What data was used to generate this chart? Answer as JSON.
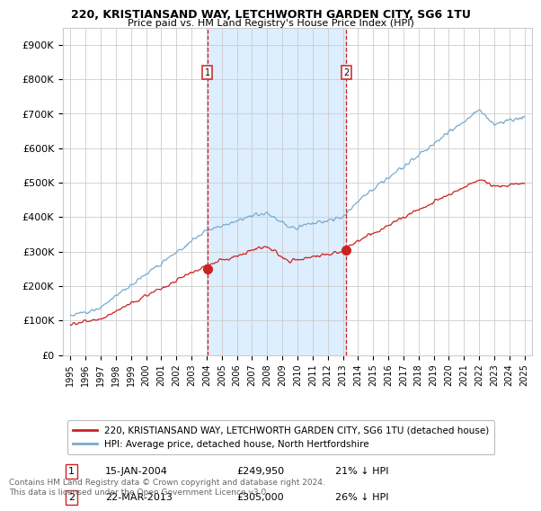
{
  "title1": "220, KRISTIANSAND WAY, LETCHWORTH GARDEN CITY, SG6 1TU",
  "title2": "Price paid vs. HM Land Registry's House Price Index (HPI)",
  "ylabel_ticks": [
    "£0",
    "£100K",
    "£200K",
    "£300K",
    "£400K",
    "£500K",
    "£600K",
    "£700K",
    "£800K",
    "£900K"
  ],
  "ytick_values": [
    0,
    100000,
    200000,
    300000,
    400000,
    500000,
    600000,
    700000,
    800000,
    900000
  ],
  "ylim": [
    0,
    950000
  ],
  "xlim_start": 1994.5,
  "xlim_end": 2025.5,
  "ann1_x": 2004.04,
  "ann1_price": 249950,
  "ann1_date": "15-JAN-2004",
  "ann1_pct": "21% ↓ HPI",
  "ann2_x": 2013.22,
  "ann2_price": 305000,
  "ann2_date": "22-MAR-2013",
  "ann2_pct": "26% ↓ HPI",
  "legend_line1": "220, KRISTIANSAND WAY, LETCHWORTH GARDEN CITY, SG6 1TU (detached house)",
  "legend_line2": "HPI: Average price, detached house, North Hertfordshire",
  "footnote": "Contains HM Land Registry data © Crown copyright and database right 2024.\nThis data is licensed under the Open Government Licence v3.0.",
  "line_color_red": "#cc2222",
  "line_color_blue": "#7aabcf",
  "shaded_region_color": "#ddeeff",
  "ann_box_color": "#cc2222",
  "grid_color": "#cccccc",
  "bg_color": "#ffffff"
}
